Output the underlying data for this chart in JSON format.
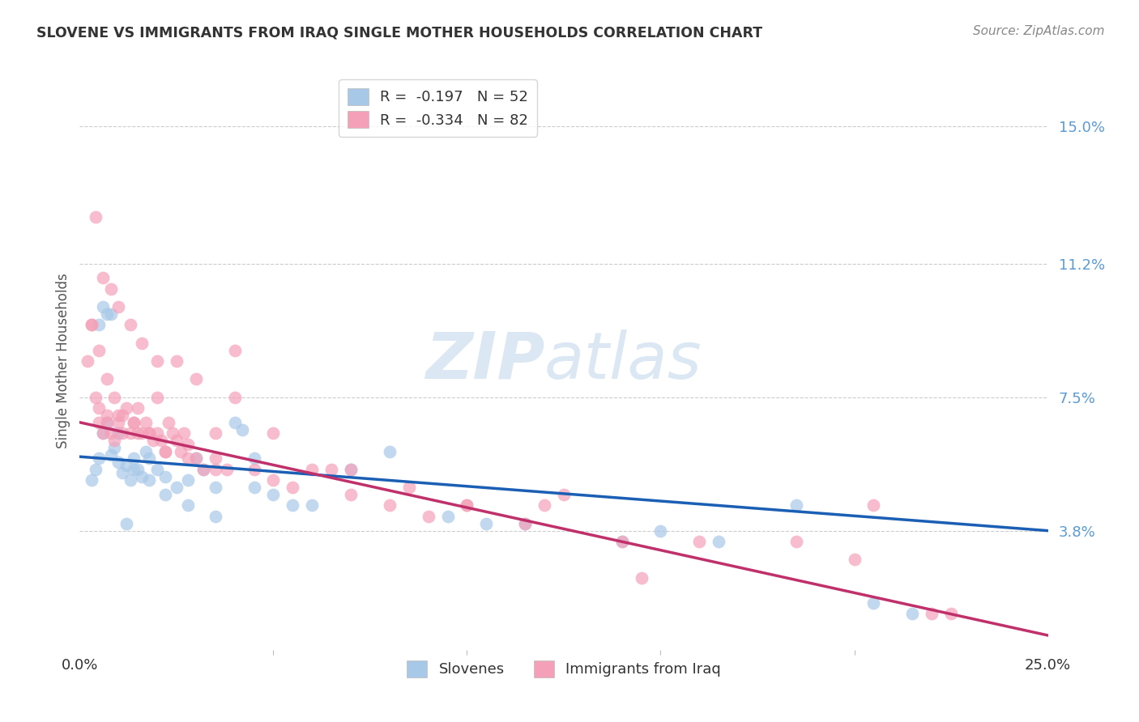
{
  "title": "SLOVENE VS IMMIGRANTS FROM IRAQ SINGLE MOTHER HOUSEHOLDS CORRELATION CHART",
  "source": "Source: ZipAtlas.com",
  "ylabel": "Single Mother Households",
  "ytick_values": [
    3.8,
    7.5,
    11.2,
    15.0
  ],
  "xmin": 0.0,
  "xmax": 25.0,
  "ymin": 0.5,
  "ymax": 16.5,
  "watermark_zip": "ZIP",
  "watermark_atlas": "atlas",
  "legend_entry1": "R =  -0.197   N = 52",
  "legend_entry2": "R =  -0.334   N = 82",
  "legend_label1": "Slovenes",
  "legend_label2": "Immigrants from Iraq",
  "color_blue": "#a8c8e8",
  "color_pink": "#f4a0b8",
  "line_color_blue": "#1a5fb4",
  "line_color_pink": "#c0306a",
  "blue_line_x0": 0.0,
  "blue_line_y0": 5.85,
  "blue_line_x1": 25.0,
  "blue_line_y1": 3.8,
  "pink_line_x0": 0.0,
  "pink_line_y0": 6.8,
  "pink_line_x1": 25.0,
  "pink_line_y1": 0.9,
  "slovene_x": [
    0.3,
    0.4,
    0.5,
    0.6,
    0.7,
    0.8,
    0.9,
    1.0,
    1.1,
    1.2,
    1.3,
    1.4,
    1.5,
    1.6,
    1.7,
    1.8,
    2.0,
    2.2,
    2.5,
    2.8,
    3.0,
    3.2,
    3.5,
    4.0,
    4.2,
    4.5,
    5.0,
    5.5,
    6.0,
    7.0,
    8.0,
    9.5,
    10.5,
    11.5,
    14.0,
    15.0,
    16.5,
    18.5,
    20.5,
    21.5,
    0.5,
    0.6,
    0.7,
    0.8,
    1.0,
    1.2,
    1.4,
    1.8,
    2.2,
    2.8,
    3.5,
    4.5
  ],
  "slovene_y": [
    5.2,
    5.5,
    5.8,
    6.5,
    6.8,
    5.9,
    6.1,
    5.7,
    5.4,
    5.6,
    5.2,
    5.8,
    5.5,
    5.3,
    6.0,
    5.8,
    5.5,
    5.3,
    5.0,
    5.2,
    5.8,
    5.5,
    5.0,
    6.8,
    6.6,
    5.0,
    4.8,
    4.5,
    4.5,
    5.5,
    6.0,
    4.2,
    4.0,
    4.0,
    3.5,
    3.8,
    3.5,
    4.5,
    1.8,
    1.5,
    9.5,
    10.0,
    9.8,
    9.8,
    6.5,
    4.0,
    5.5,
    5.2,
    4.8,
    4.5,
    4.2,
    5.8
  ],
  "iraq_x": [
    0.2,
    0.3,
    0.4,
    0.5,
    0.5,
    0.6,
    0.7,
    0.7,
    0.8,
    0.9,
    1.0,
    1.0,
    1.1,
    1.2,
    1.3,
    1.4,
    1.5,
    1.5,
    1.6,
    1.7,
    1.8,
    1.9,
    2.0,
    2.0,
    2.1,
    2.2,
    2.3,
    2.4,
    2.5,
    2.6,
    2.7,
    2.8,
    3.0,
    3.2,
    3.5,
    3.8,
    4.0,
    4.5,
    5.0,
    5.5,
    6.5,
    7.0,
    8.0,
    9.0,
    10.0,
    11.5,
    12.5,
    14.5,
    20.5,
    22.5,
    0.4,
    0.6,
    0.8,
    1.0,
    1.3,
    1.6,
    2.0,
    2.5,
    3.0,
    3.5,
    4.0,
    5.0,
    6.0,
    7.0,
    8.5,
    10.0,
    12.0,
    14.0,
    16.0,
    18.5,
    20.0,
    22.0,
    0.3,
    0.5,
    0.7,
    0.9,
    1.1,
    1.4,
    1.8,
    2.2,
    2.8,
    3.5
  ],
  "iraq_y": [
    8.5,
    9.5,
    7.5,
    6.8,
    7.2,
    6.5,
    7.0,
    6.8,
    6.5,
    6.3,
    7.0,
    6.8,
    6.5,
    7.2,
    6.5,
    6.8,
    7.2,
    6.5,
    6.5,
    6.8,
    6.5,
    6.3,
    6.5,
    7.5,
    6.3,
    6.0,
    6.8,
    6.5,
    6.3,
    6.0,
    6.5,
    6.2,
    5.8,
    5.5,
    5.8,
    5.5,
    7.5,
    5.5,
    5.2,
    5.0,
    5.5,
    4.8,
    4.5,
    4.2,
    4.5,
    4.0,
    4.8,
    2.5,
    4.5,
    1.5,
    12.5,
    10.8,
    10.5,
    10.0,
    9.5,
    9.0,
    8.5,
    8.5,
    8.0,
    6.5,
    8.8,
    6.5,
    5.5,
    5.5,
    5.0,
    4.5,
    4.5,
    3.5,
    3.5,
    3.5,
    3.0,
    1.5,
    9.5,
    8.8,
    8.0,
    7.5,
    7.0,
    6.8,
    6.5,
    6.0,
    5.8,
    5.5
  ]
}
